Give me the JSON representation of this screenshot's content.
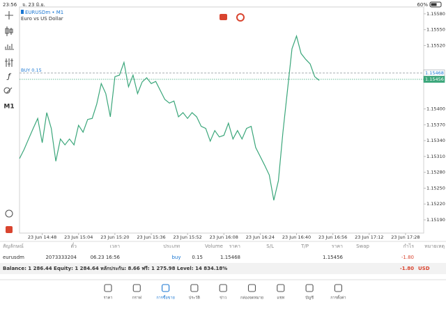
{
  "status_bar": {
    "time": "23:56",
    "date": "จ. 23 มิ.ย.",
    "battery": "60%"
  },
  "toolbar": {
    "timeframe": "M1"
  },
  "chart_header": {
    "symbol": "EURUSDm • M1",
    "description": "Euro vs US Dollar"
  },
  "chart_data": {
    "type": "line",
    "series": [
      {
        "color": "#3aa67a",
        "values": [
          1.15306,
          1.15323,
          1.15343,
          1.15363,
          1.15382,
          1.15336,
          1.15393,
          1.15363,
          1.15301,
          1.15343,
          1.15332,
          1.15343,
          1.15332,
          1.15369,
          1.15356,
          1.1538,
          1.15382,
          1.15409,
          1.15448,
          1.15429,
          1.15385,
          1.15461,
          1.15464,
          1.15488,
          1.15442,
          1.15464,
          1.15429,
          1.15451,
          1.15459,
          1.15448,
          1.15452,
          1.15435,
          1.15418,
          1.15411,
          1.15415,
          1.15385,
          1.15393,
          1.15382,
          1.15393,
          1.15385,
          1.15367,
          1.15363,
          1.15339,
          1.15359,
          1.15347,
          1.1535,
          1.15373,
          1.15343,
          1.15359,
          1.15343,
          1.15363,
          1.15367,
          1.15327,
          1.1531,
          1.15293,
          1.15275,
          1.15227,
          1.15264,
          1.15356,
          1.15435,
          1.15514,
          1.15538,
          1.15505,
          1.15494,
          1.15485,
          1.15461,
          1.15454
        ]
      }
    ],
    "ylim": [
      1.15165,
      1.15593
    ],
    "yticks": [
      {
        "value": 1.1558,
        "label": "1.15580"
      },
      {
        "value": 1.1555,
        "label": "1.15550"
      },
      {
        "value": 1.1552,
        "label": "1.15520"
      },
      {
        "value": 1.154,
        "label": "1.15400"
      },
      {
        "value": 1.1537,
        "label": "1.15370"
      },
      {
        "value": 1.1534,
        "label": "1.15340"
      },
      {
        "value": 1.1531,
        "label": "1.15310"
      },
      {
        "value": 1.1528,
        "label": "1.15280"
      },
      {
        "value": 1.1525,
        "label": "1.15250"
      },
      {
        "value": 1.1522,
        "label": "1.15220"
      },
      {
        "value": 1.1519,
        "label": "1.15190"
      }
    ],
    "xlim": [
      0,
      89
    ],
    "xticks": [
      {
        "value": 5,
        "label": "23 Jun 14:48"
      },
      {
        "value": 13,
        "label": "23 Jun 15:04"
      },
      {
        "value": 21,
        "label": "23 Jun 15:20"
      },
      {
        "value": 29,
        "label": "23 Jun 15:36"
      },
      {
        "value": 37,
        "label": "23 Jun 15:52"
      },
      {
        "value": 45,
        "label": "23 Jun 16:08"
      },
      {
        "value": 53,
        "label": "23 Jun 16:24"
      },
      {
        "value": 61,
        "label": "23 Jun 16:40"
      },
      {
        "value": 69,
        "label": "23 Jun 16:56"
      },
      {
        "value": 77,
        "label": "23 Jun 17:12"
      },
      {
        "value": 85,
        "label": "23 Jun 17:28"
      }
    ],
    "price_lines": [
      {
        "label": "BUY 0.15",
        "value": 1.15468,
        "color": "#9aa0a6"
      },
      {
        "value": 1.15456,
        "color": "#3aa67a"
      }
    ]
  },
  "positions": {
    "headers": [
      "สัญลักษณ์",
      "ตั๋ว",
      "เวลา",
      "ประเภท",
      "Volume",
      "ราคา",
      "S/L",
      "T/P",
      "ราคา",
      "Swap",
      "กำไร",
      "หมายเหตุ"
    ],
    "row": {
      "symbol": "eurusdm",
      "ticket": "2073333204",
      "time": "06.23 16:56",
      "type": "buy",
      "volume": "0.15",
      "open_price": "1.15468",
      "current_price": "1.15456",
      "profit": "-1.80"
    }
  },
  "balance": {
    "text": "Balance: 1 286.44 Equity: 1 284.64 หลักประกัน: 8.66 ฟรี: 1 275.98 Level: 14 834.18%",
    "profit": "-1.80",
    "currency": "USD"
  },
  "nav": {
    "items": [
      "ราคา",
      "กราฟ",
      "การซื้อขาย",
      "ประวัติ",
      "ข่าว",
      "กล่องจดหมาย",
      "แชท",
      "บัญชี",
      "การตั้งค่า"
    ],
    "active": 2
  }
}
